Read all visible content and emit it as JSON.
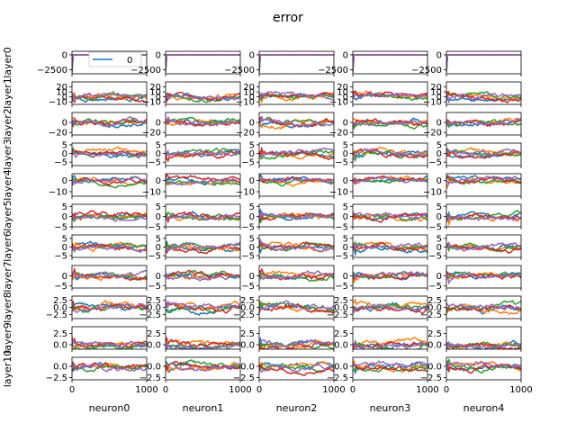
{
  "figure": {
    "title": "error"
  },
  "colors": [
    "#1f77b4",
    "#ff7f0e",
    "#2ca02c",
    "#d62728",
    "#9467bd"
  ],
  "chart_data": {
    "type": "line",
    "title": "error",
    "columns": [
      "neuron0",
      "neuron1",
      "neuron2",
      "neuron3",
      "neuron4"
    ],
    "rows": [
      "layer0",
      "layer1",
      "layer2",
      "layer3",
      "layer4",
      "layer5",
      "layer6",
      "layer7",
      "layer8",
      "layer9",
      "layer10"
    ],
    "xlim": [
      0,
      1000
    ],
    "x_ticks": [
      0,
      1000
    ],
    "n_series_per_panel": 5,
    "legend": {
      "placement": "lower-right",
      "panel": "layer0-neuron0",
      "entries": [
        "0"
      ]
    },
    "row_ylims": [
      [
        -3200,
        600
      ],
      [
        -15,
        30
      ],
      [
        -25,
        20
      ],
      [
        -7,
        6
      ],
      [
        -14,
        6
      ],
      [
        -5,
        6
      ],
      [
        -6,
        7
      ],
      [
        -6,
        5
      ],
      [
        -4,
        4
      ],
      [
        -1,
        4
      ],
      [
        -3,
        2
      ]
    ],
    "row_yticks": [
      [
        -2500,
        0
      ],
      [
        -10,
        0,
        10,
        20
      ],
      [
        -20,
        0
      ],
      [
        -5,
        0,
        5
      ],
      [
        -10,
        0
      ],
      [
        -5,
        0,
        5
      ],
      [
        -5,
        0,
        5
      ],
      [
        -5,
        0
      ],
      [
        -2.5,
        0.0,
        2.5
      ],
      [
        0.0,
        2.5
      ],
      [
        -2.5,
        0.0
      ]
    ],
    "row_ytick_labels": [
      [
        "−2500",
        "0"
      ],
      [
        "−10",
        "0",
        "10",
        "20"
      ],
      [
        "−20",
        "0"
      ],
      [
        "−5",
        "0",
        "5"
      ],
      [
        "−10",
        "0"
      ],
      [
        "−5",
        "0",
        "5"
      ],
      [
        "−5",
        "0",
        "5"
      ],
      [
        "−5",
        "0"
      ],
      [
        "−2.5",
        "0.0",
        "2.5"
      ],
      [
        "0.0",
        "2.5"
      ],
      [
        "−2.5",
        "0.0"
      ]
    ],
    "row_amplitude": [
      1,
      10,
      10,
      3,
      4,
      2.5,
      3,
      2.5,
      2,
      1.2,
      1.2
    ]
  }
}
